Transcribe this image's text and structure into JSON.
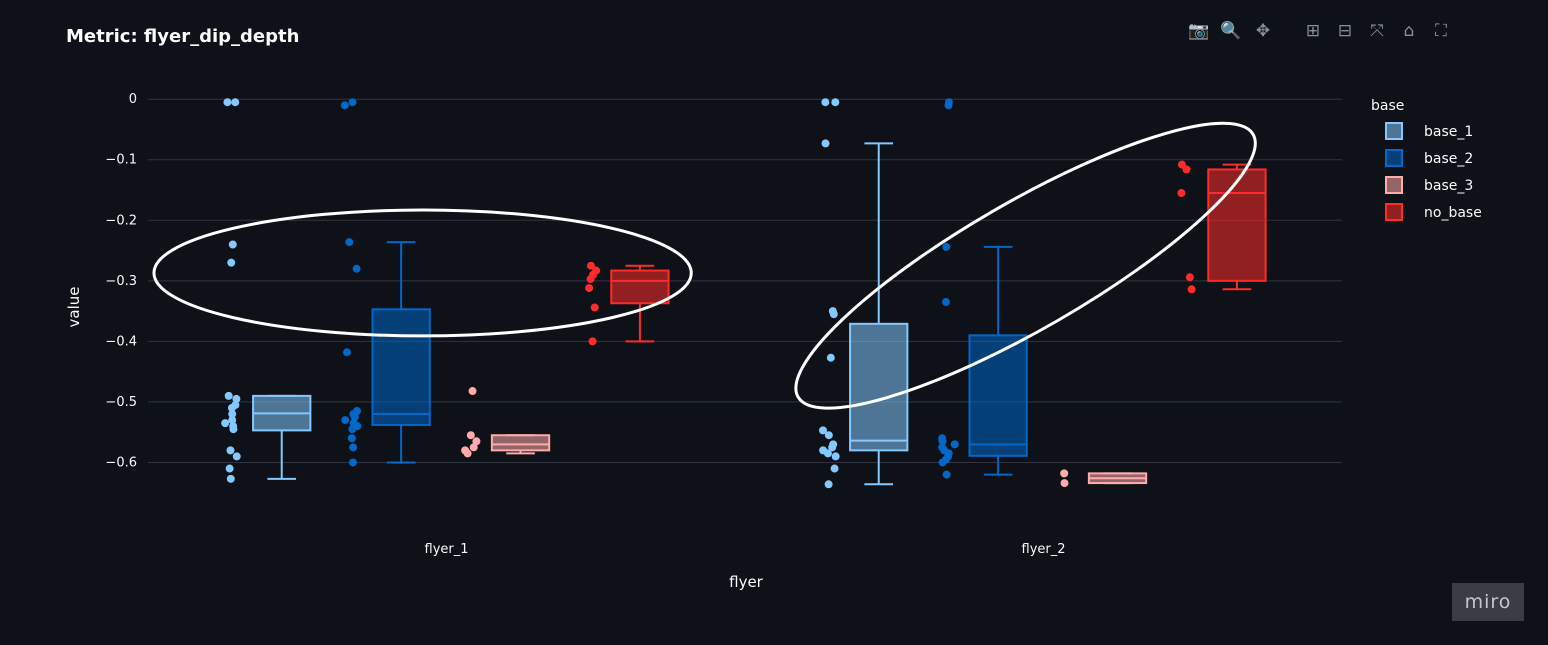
{
  "page": {
    "title": "Metric: flyer_dip_depth",
    "watermark": "miro"
  },
  "toolbar": [
    {
      "name": "camera-icon",
      "glyph": "📷"
    },
    {
      "name": "zoom-icon",
      "glyph": "🔍"
    },
    {
      "name": "pan-icon",
      "glyph": "✥"
    },
    {
      "name": "gap"
    },
    {
      "name": "zoom-in-icon",
      "glyph": "⊞"
    },
    {
      "name": "zoom-out-icon",
      "glyph": "⊟"
    },
    {
      "name": "autoscale-icon",
      "glyph": "⤧"
    },
    {
      "name": "home-icon",
      "glyph": "⌂"
    },
    {
      "name": "fullscreen-icon",
      "glyph": "⛶"
    }
  ],
  "chart_data": {
    "type": "box",
    "title": "Metric: flyer_dip_depth",
    "xlabel": "flyer",
    "ylabel": "value",
    "categories": [
      "flyer_1",
      "flyer_2"
    ],
    "yticks": [
      0,
      -0.1,
      -0.2,
      -0.3,
      -0.4,
      -0.5,
      -0.6
    ],
    "ytick_labels": [
      "0",
      "−0.1",
      "−0.2",
      "−0.3",
      "−0.4",
      "−0.5",
      "−0.6"
    ],
    "ylim": [
      -0.695,
      0.035
    ],
    "grid": true,
    "legend": {
      "title": "base",
      "placement": "right"
    },
    "series": [
      {
        "name": "base_1",
        "color": "#83c9ff",
        "fill": "rgba(131,201,255,0.55)",
        "boxes": [
          {
            "category": "flyer_1",
            "min": -0.627,
            "q1": -0.547,
            "median": -0.519,
            "q3": -0.49,
            "max": -0.49
          },
          {
            "category": "flyer_2",
            "min": -0.636,
            "q1": -0.58,
            "median": -0.564,
            "q3": -0.371,
            "max": -0.073
          }
        ],
        "points": [
          {
            "category": "flyer_1",
            "values": [
              -0.005,
              -0.005,
              -0.24,
              -0.27,
              -0.49,
              -0.495,
              -0.505,
              -0.51,
              -0.52,
              -0.53,
              -0.535,
              -0.54,
              -0.545,
              -0.58,
              -0.59,
              -0.61,
              -0.627
            ]
          },
          {
            "category": "flyer_2",
            "values": [
              -0.005,
              -0.005,
              -0.073,
              -0.35,
              -0.355,
              -0.427,
              -0.547,
              -0.555,
              -0.57,
              -0.575,
              -0.58,
              -0.585,
              -0.59,
              -0.61,
              -0.636
            ]
          }
        ]
      },
      {
        "name": "base_2",
        "color": "#0068c9",
        "fill": "rgba(0,104,201,0.55)",
        "boxes": [
          {
            "category": "flyer_1",
            "min": -0.6,
            "q1": -0.538,
            "median": -0.52,
            "q3": -0.347,
            "max": -0.236
          },
          {
            "category": "flyer_2",
            "min": -0.62,
            "q1": -0.589,
            "median": -0.57,
            "q3": -0.39,
            "max": -0.244
          }
        ],
        "points": [
          {
            "category": "flyer_1",
            "values": [
              -0.005,
              -0.01,
              -0.236,
              -0.28,
              -0.418,
              -0.515,
              -0.52,
              -0.525,
              -0.53,
              -0.535,
              -0.54,
              -0.545,
              -0.56,
              -0.575,
              -0.6
            ]
          },
          {
            "category": "flyer_2",
            "values": [
              -0.005,
              -0.01,
              -0.244,
              -0.335,
              -0.56,
              -0.565,
              -0.57,
              -0.575,
              -0.58,
              -0.585,
              -0.59,
              -0.595,
              -0.6,
              -0.62
            ]
          }
        ]
      },
      {
        "name": "base_3",
        "color": "#ffabab",
        "fill": "rgba(255,171,171,0.55)",
        "boxes": [
          {
            "category": "flyer_1",
            "min": -0.585,
            "q1": -0.58,
            "median": -0.57,
            "q3": -0.555,
            "max": -0.555
          },
          {
            "category": "flyer_2",
            "min": -0.634,
            "q1": -0.634,
            "median": -0.626,
            "q3": -0.618,
            "max": -0.618
          }
        ],
        "points": [
          {
            "category": "flyer_1",
            "values": [
              -0.482,
              -0.555,
              -0.565,
              -0.575,
              -0.58,
              -0.585
            ]
          },
          {
            "category": "flyer_2",
            "values": [
              -0.618,
              -0.634
            ]
          }
        ]
      },
      {
        "name": "no_base",
        "color": "#ff2b2b",
        "fill": "rgba(255,43,43,0.55)",
        "boxes": [
          {
            "category": "flyer_1",
            "min": -0.4,
            "q1": -0.337,
            "median": -0.3,
            "q3": -0.283,
            "max": -0.275
          },
          {
            "category": "flyer_2",
            "min": -0.314,
            "q1": -0.3,
            "median": -0.155,
            "q3": -0.116,
            "max": -0.108
          }
        ],
        "points": [
          {
            "category": "flyer_1",
            "values": [
              -0.275,
              -0.283,
              -0.29,
              -0.297,
              -0.312,
              -0.344,
              -0.4
            ]
          },
          {
            "category": "flyer_2",
            "values": [
              -0.108,
              -0.116,
              -0.155,
              -0.294,
              -0.314
            ]
          }
        ]
      }
    ],
    "annotations": [
      {
        "shape": "ellipse",
        "color": "#ffffff",
        "cx_category": "flyer_1",
        "cx_offset": -0.04,
        "cy": -0.287,
        "rx_cat": 0.45,
        "ry_value": 0.104,
        "rotate": 0
      },
      {
        "shape": "ellipse",
        "color": "#ffffff",
        "cx_category": "flyer_2",
        "cx_offset": -0.03,
        "cy": -0.275,
        "rx_cat": 0.44,
        "ry_value": 0.105,
        "rotate": -30
      }
    ]
  }
}
